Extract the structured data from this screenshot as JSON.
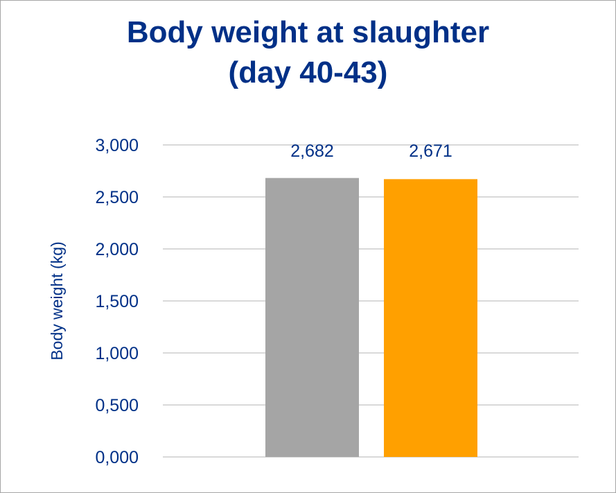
{
  "colors": {
    "text": "#003087",
    "grid": "#d9d9d9",
    "frame": "#a6a6a6"
  },
  "chart_data": {
    "type": "bar",
    "title": "Body weight at slaughter",
    "subtitle": "(day 40-43)",
    "xlabel": "",
    "ylabel": "Body weight  (kg)",
    "ylim": [
      0,
      3
    ],
    "yticks": [
      0,
      0.5,
      1.0,
      1.5,
      2.0,
      2.5,
      3.0
    ],
    "ytick_labels": [
      "0,000",
      "0,500",
      "1,000",
      "1,500",
      "2,000",
      "2,500",
      "3,000"
    ],
    "grid": true,
    "legend": "none",
    "categories": [
      "",
      ""
    ],
    "values": [
      2.682,
      2.671
    ],
    "value_labels": [
      "2,682",
      "2,671"
    ],
    "bar_colors": [
      "#a5a5a5",
      "#ffa000"
    ]
  }
}
